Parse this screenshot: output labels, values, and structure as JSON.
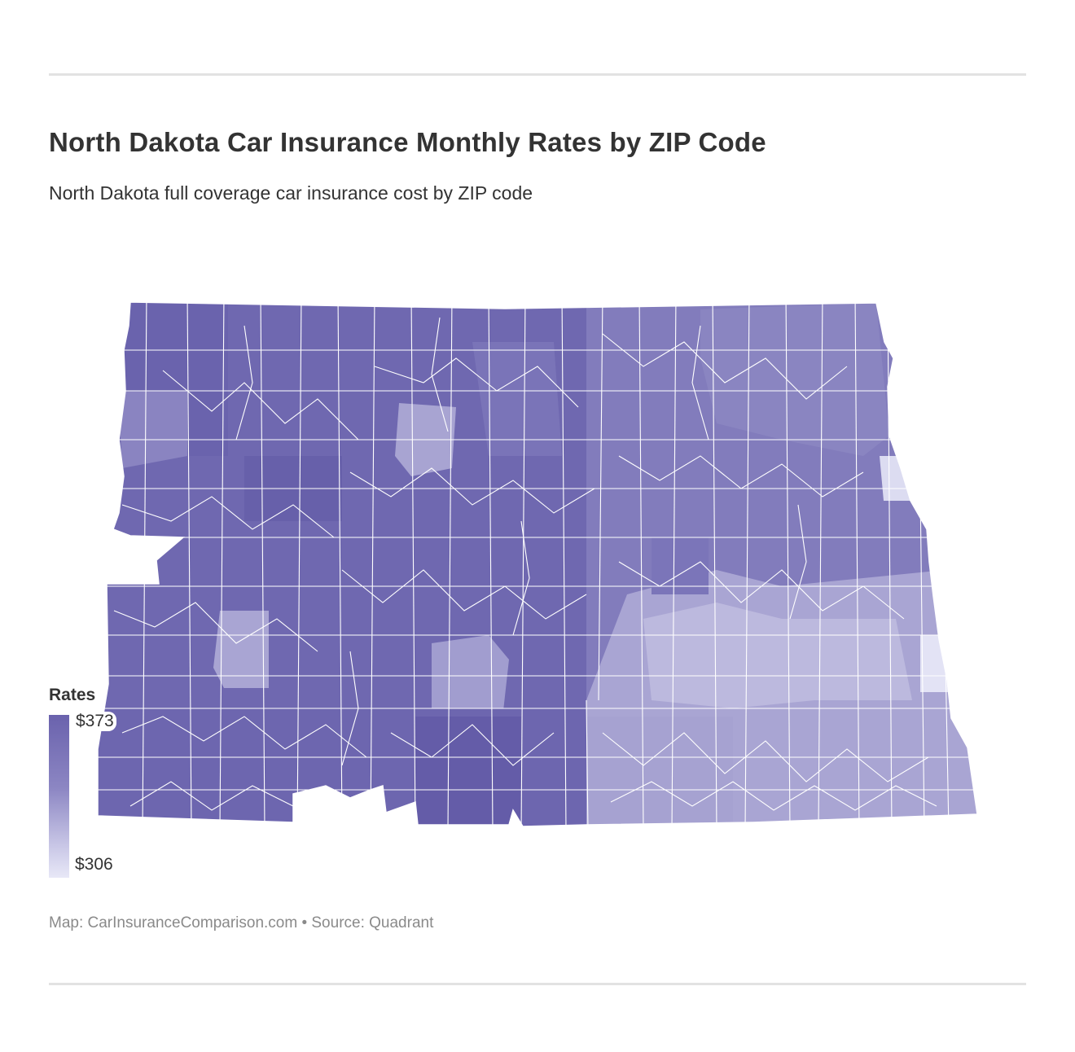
{
  "header": {
    "title": "North Dakota Car Insurance Monthly Rates by ZIP Code",
    "subtitle": "North Dakota full coverage car insurance cost by ZIP code"
  },
  "legend": {
    "title": "Rates",
    "max_label": "$373",
    "min_label": "$306",
    "max_value": 373,
    "min_value": 306,
    "color_high": "#645ca8",
    "color_low": "#e8e8f7"
  },
  "footer": {
    "source": "Map: CarInsuranceComparison.com • Source: Quadrant"
  },
  "map": {
    "region": "North Dakota",
    "colors": {
      "darkest": "#645ca8",
      "dark": "#6f68b0",
      "mid_dark": "#7a74b8",
      "mid": "#8a85c1",
      "light": "#a8a4d2",
      "lighter": "#bdbade",
      "lightest": "#dcdcf1",
      "border": "#ffffff"
    }
  }
}
